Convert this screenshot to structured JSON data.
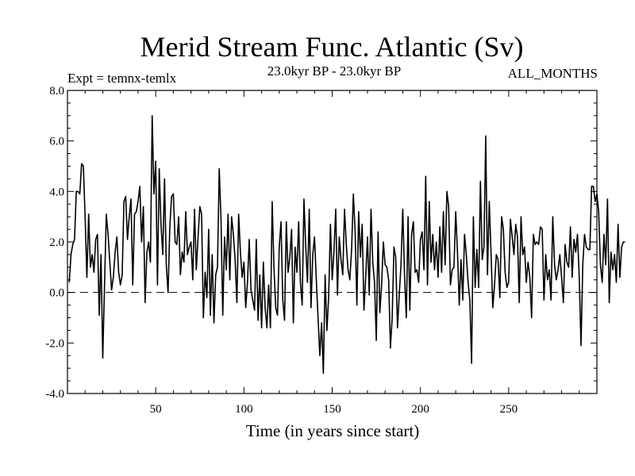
{
  "chart_data": {
    "type": "line",
    "title": "Merid Stream Func. Atlantic (Sv)",
    "subtitle_left": "Expt = temnx-temlx",
    "subtitle_center": "23.0kyr BP - 23.0kyr BP",
    "subtitle_right": "ALL_MONTHS",
    "xlabel": "Time (in years since start)",
    "ylabel": "",
    "xlim": [
      0,
      300
    ],
    "ylim": [
      -4.0,
      8.0
    ],
    "xticks": [
      50,
      100,
      150,
      200,
      250
    ],
    "xtick_labels": [
      "50",
      "100",
      "150",
      "200",
      "250"
    ],
    "yticks": [
      -4.0,
      -2.0,
      0.0,
      2.0,
      4.0,
      6.0,
      8.0
    ],
    "ytick_labels": [
      "-4.0",
      "-2.0",
      "0.0",
      "2.0",
      "4.0",
      "6.0",
      "8.0"
    ],
    "reference_line": 0.0,
    "series": [
      {
        "name": "Merid Stream Func.",
        "color": "#000000",
        "values": [
          0.4,
          1.5,
          1.9,
          2.1,
          4.0,
          4.0,
          3.9,
          5.1,
          5.0,
          3.0,
          0.6,
          3.1,
          1.0,
          1.5,
          0.8,
          2.1,
          2.3,
          -0.9,
          1.5,
          -2.6,
          0.3,
          3.1,
          2.3,
          1.2,
          0.1,
          0.6,
          1.6,
          2.2,
          0.8,
          0.3,
          0.7,
          3.6,
          3.8,
          2.1,
          3.0,
          3.7,
          0.3,
          3.1,
          3.2,
          3.6,
          4.2,
          2.0,
          3.4,
          -0.4,
          1.6,
          2.0,
          1.2,
          7.0,
          3.9,
          5.2,
          0.3,
          4.9,
          2.7,
          1.5,
          4.5,
          1.1,
          0.0,
          2.6,
          3.8,
          3.9,
          2.0,
          1.9,
          3.0,
          0.7,
          1.6,
          1.2,
          3.2,
          1.5,
          1.8,
          2.0,
          0.5,
          3.3,
          0.9,
          2.2,
          3.4,
          3.1,
          -1.0,
          0.8,
          -0.2,
          2.5,
          -0.9,
          1.5,
          -1.2,
          0.7,
          1.0,
          4.9,
          2.9,
          -0.9,
          2.2,
          0.9,
          3.1,
          0.5,
          3.0,
          2.3,
          1.3,
          -0.4,
          3.1,
          1.6,
          0.6,
          1.2,
          -0.6,
          0.4,
          2.1,
          0.1,
          -0.3,
          -0.7,
          2.1,
          -1.1,
          0.7,
          -1.4,
          1.2,
          -0.6,
          -1.4,
          0.3,
          -1.4,
          3.6,
          1.0,
          -0.6,
          -0.9,
          1.8,
          2.8,
          -0.3,
          -1.1,
          2.8,
          0.8,
          1.4,
          2.5,
          -1.2,
          1.8,
          0.8,
          2.8,
          0.4,
          -0.5,
          3.7,
          1.8,
          0.4,
          3.3,
          -0.6,
          1.5,
          2.2,
          0.5,
          -1.0,
          -2.5,
          -1.2,
          -3.2,
          0.7,
          -1.5,
          -0.2,
          2.7,
          0.5,
          1.6,
          3.3,
          -0.1,
          2.2,
          1.3,
          0.7,
          3.3,
          1.9,
          0.9,
          0.5,
          1.7,
          3.9,
          2.4,
          -0.5,
          3.2,
          1.4,
          2.7,
          -0.7,
          0.6,
          2.2,
          -0.1,
          3.3,
          1.2,
          0.4,
          -1.9,
          2.4,
          -0.8,
          0.3,
          2.0,
          1.1,
          1.0,
          0.5,
          -2.2,
          -1.0,
          1.8,
          1.4,
          -1.4,
          -0.1,
          1.1,
          3.3,
          0.7,
          -1.0,
          3.0,
          -0.7,
          2.3,
          2.8,
          0.8,
          0.9,
          0.4,
          2.1,
          2.4,
          0.9,
          4.6,
          0.3,
          3.6,
          1.2,
          2.3,
          0.9,
          2.0,
          0.6,
          2.6,
          0.8,
          3.2,
          1.1,
          4.0,
          3.4,
          0.3,
          0.9,
          1.0,
          3.2,
          1.6,
          -0.5,
          1.3,
          -0.3,
          2.3,
          1.5,
          0.4,
          -0.3,
          -2.8,
          3.0,
          0.2,
          1.7,
          0.2,
          4.4,
          1.3,
          1.8,
          6.2,
          0.7,
          3.6,
          1.6,
          -0.6,
          0.3,
          1.5,
          1.3,
          -0.2,
          3.0,
          2.5,
          0.8,
          0.2,
          0.4,
          2.9,
          2.2,
          1.5,
          2.7,
          2.2,
          -0.4,
          3.0,
          1.5,
          1.8,
          0.4,
          1.2,
          0.6,
          -1.0,
          2.3,
          1.9,
          2.0,
          1.9,
          2.6,
          2.5,
          -0.3,
          1.5,
          0.5,
          0.9,
          -0.3,
          3.0,
          1.1,
          0.5,
          0.9,
          1.5,
          0.6,
          -0.4,
          1.9,
          1.2,
          1.0,
          2.6,
          0.6,
          2.1,
          1.6,
          2.3,
          0.6,
          -2.1,
          1.1,
          2.3,
          1.8,
          1.7,
          1.7,
          4.2,
          4.2,
          3.6,
          3.9,
          3.2,
          1.1,
          0.4,
          2.3,
          1.1,
          3.7,
          -0.4,
          1.6,
          0.9,
          1.5,
          0.4,
          2.7,
          0.6,
          1.8,
          2.0,
          2.0
        ]
      }
    ]
  }
}
